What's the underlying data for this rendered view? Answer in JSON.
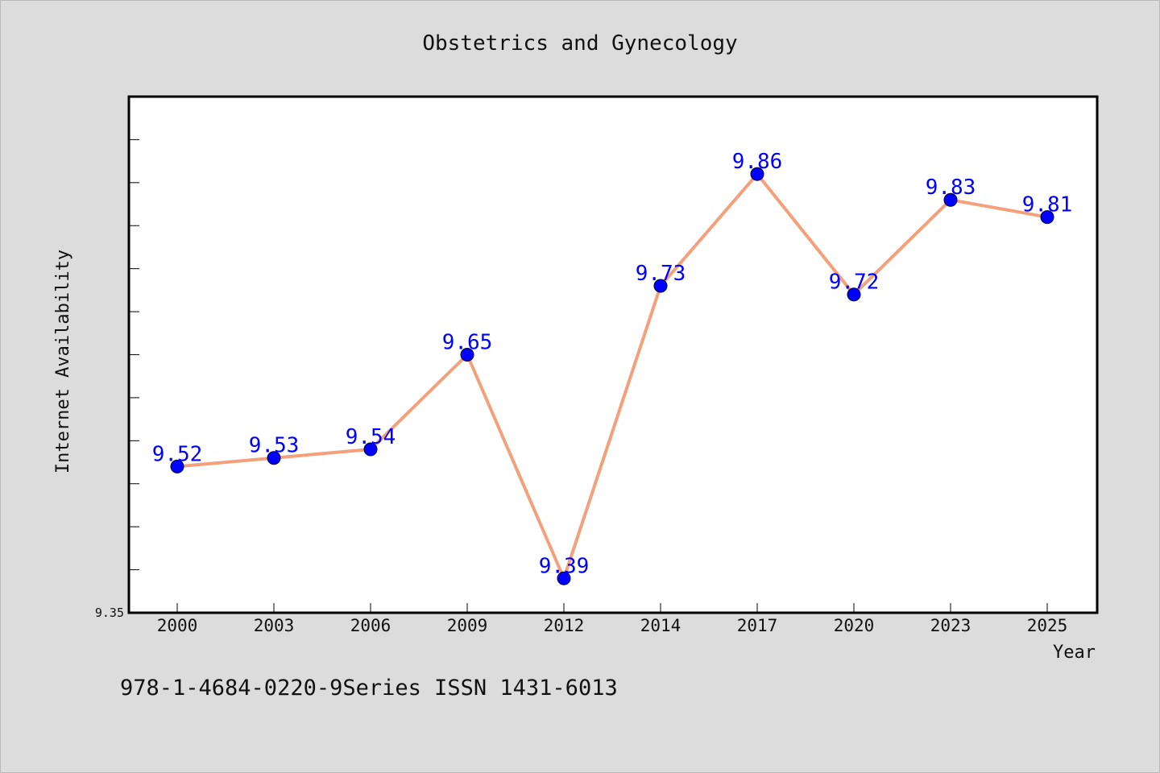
{
  "chart_data": {
    "type": "line",
    "title": "Obstetrics and Gynecology",
    "xlabel": "Year",
    "ylabel": "Internet Availability",
    "categories": [
      "2000",
      "2003",
      "2006",
      "2009",
      "2012",
      "2014",
      "2017",
      "2020",
      "2023",
      "2025"
    ],
    "series": [
      {
        "values": [
          9.52,
          9.53,
          9.54,
          9.65,
          9.39,
          9.73,
          9.86,
          9.72,
          9.83,
          9.81
        ]
      }
    ],
    "data_labels": [
      "9.52",
      "9.53",
      "9.54",
      "9.65",
      "9.39",
      "9.73",
      "9.86",
      "9.72",
      "9.83",
      "9.81"
    ],
    "y_ticks_labeled": [
      "9.35"
    ],
    "ylim": [
      9.35,
      9.95
    ],
    "grid": false,
    "colors": {
      "line": "#f4a07a",
      "marker": "#0000ff",
      "data_label": "#0000ff",
      "background": "#dcdcdc",
      "plot_background": "#ffffff"
    }
  },
  "footer": {
    "text": "978-1-4684-0220-9Series ISSN 1431-6013"
  }
}
